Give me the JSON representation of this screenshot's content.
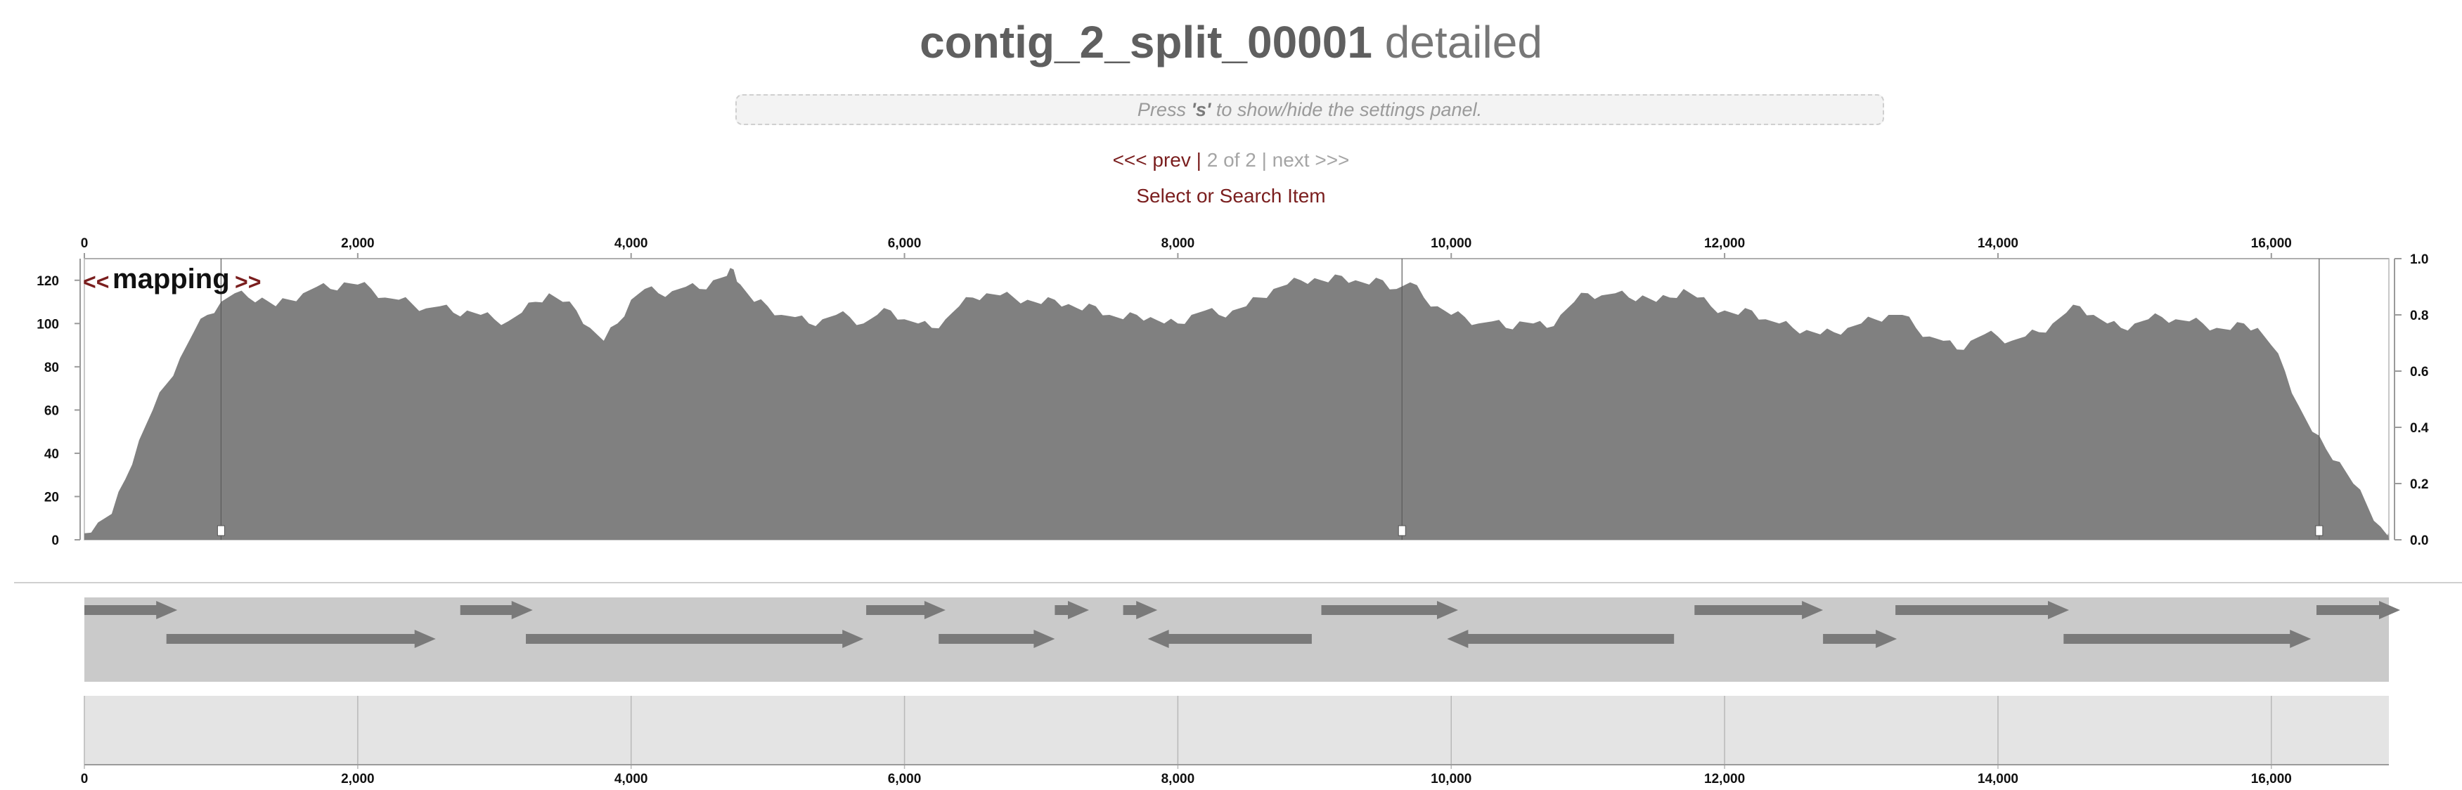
{
  "header": {
    "title_bold": "contig_2_split_00001",
    "title_light": "detailed"
  },
  "settings_hint": {
    "prefix": "Press ",
    "key": "'s'",
    "suffix": " to show/hide the settings panel."
  },
  "navigation": {
    "prev_label": "<<< prev",
    "separator": "|",
    "position_label": "2 of 2",
    "next_label": "next >>>"
  },
  "select_search_label": "Select or Search Item",
  "coverage_track": {
    "label": "mapping",
    "left_arrow": "<<",
    "right_arrow": ">>",
    "left_axis_ticks": [
      "0",
      "20",
      "40",
      "60",
      "80",
      "100",
      "120"
    ],
    "right_axis_ticks": [
      "0.0",
      "0.2",
      "0.4",
      "0.6",
      "0.8",
      "1.0"
    ],
    "variability_markers": [
      1000,
      9640,
      16350
    ],
    "coverage_max": 130,
    "coverage_profile": [
      [
        0,
        3
      ],
      [
        100,
        8
      ],
      [
        200,
        12
      ],
      [
        300,
        28
      ],
      [
        400,
        46
      ],
      [
        500,
        60
      ],
      [
        600,
        72
      ],
      [
        700,
        84
      ],
      [
        800,
        96
      ],
      [
        900,
        104
      ],
      [
        1000,
        110
      ],
      [
        1100,
        114
      ],
      [
        1200,
        112
      ],
      [
        1300,
        112
      ],
      [
        1400,
        108
      ],
      [
        1500,
        111
      ],
      [
        1600,
        114
      ],
      [
        1700,
        117
      ],
      [
        1800,
        116
      ],
      [
        1900,
        119
      ],
      [
        2000,
        118
      ],
      [
        2100,
        116
      ],
      [
        2200,
        112
      ],
      [
        2300,
        111
      ],
      [
        2400,
        109
      ],
      [
        2500,
        107
      ],
      [
        2600,
        108
      ],
      [
        2700,
        105
      ],
      [
        2800,
        106
      ],
      [
        2900,
        104
      ],
      [
        3000,
        102
      ],
      [
        3100,
        101
      ],
      [
        3200,
        105
      ],
      [
        3300,
        110
      ],
      [
        3400,
        114
      ],
      [
        3500,
        110
      ],
      [
        3600,
        106
      ],
      [
        3700,
        98
      ],
      [
        3800,
        92
      ],
      [
        3900,
        100
      ],
      [
        4000,
        111
      ],
      [
        4100,
        116
      ],
      [
        4200,
        114
      ],
      [
        4300,
        115
      ],
      [
        4400,
        117
      ],
      [
        4500,
        116
      ],
      [
        4600,
        120
      ],
      [
        4700,
        122
      ],
      [
        4750,
        125
      ],
      [
        4800,
        118
      ],
      [
        4900,
        110
      ],
      [
        5000,
        108
      ],
      [
        5100,
        104
      ],
      [
        5200,
        103
      ],
      [
        5300,
        100
      ],
      [
        5400,
        102
      ],
      [
        5500,
        104
      ],
      [
        5600,
        103
      ],
      [
        5700,
        100
      ],
      [
        5800,
        104
      ],
      [
        5900,
        106
      ],
      [
        6000,
        102
      ],
      [
        6100,
        100
      ],
      [
        6200,
        98
      ],
      [
        6300,
        102
      ],
      [
        6400,
        108
      ],
      [
        6500,
        112
      ],
      [
        6600,
        114
      ],
      [
        6700,
        113
      ],
      [
        6800,
        112
      ],
      [
        6900,
        111
      ],
      [
        7000,
        109
      ],
      [
        7100,
        111
      ],
      [
        7200,
        109
      ],
      [
        7300,
        106
      ],
      [
        7400,
        108
      ],
      [
        7500,
        104
      ],
      [
        7600,
        102
      ],
      [
        7700,
        104
      ],
      [
        7800,
        103
      ],
      [
        7900,
        100
      ],
      [
        8000,
        100
      ],
      [
        8100,
        104
      ],
      [
        8200,
        106
      ],
      [
        8300,
        104
      ],
      [
        8400,
        106
      ],
      [
        8500,
        108
      ],
      [
        8600,
        112
      ],
      [
        8700,
        116
      ],
      [
        8800,
        118
      ],
      [
        8900,
        120
      ],
      [
        9000,
        121
      ],
      [
        9100,
        119
      ],
      [
        9200,
        122
      ],
      [
        9300,
        120
      ],
      [
        9400,
        118
      ],
      [
        9500,
        120
      ],
      [
        9600,
        116
      ],
      [
        9700,
        119
      ],
      [
        9800,
        112
      ],
      [
        9900,
        108
      ],
      [
        10000,
        104
      ],
      [
        10100,
        103
      ],
      [
        10200,
        100
      ],
      [
        10300,
        101
      ],
      [
        10400,
        98
      ],
      [
        10500,
        101
      ],
      [
        10600,
        100
      ],
      [
        10700,
        98
      ],
      [
        10800,
        104
      ],
      [
        10900,
        110
      ],
      [
        11000,
        114
      ],
      [
        11100,
        113
      ],
      [
        11200,
        114
      ],
      [
        11300,
        112
      ],
      [
        11400,
        113
      ],
      [
        11500,
        110
      ],
      [
        11600,
        112
      ],
      [
        11700,
        116
      ],
      [
        11800,
        112
      ],
      [
        11900,
        108
      ],
      [
        12000,
        106
      ],
      [
        12100,
        104
      ],
      [
        12200,
        106
      ],
      [
        12300,
        102
      ],
      [
        12400,
        100
      ],
      [
        12500,
        98
      ],
      [
        12600,
        97
      ],
      [
        12700,
        95
      ],
      [
        12800,
        96
      ],
      [
        12900,
        98
      ],
      [
        13000,
        100
      ],
      [
        13100,
        102
      ],
      [
        13200,
        104
      ],
      [
        13300,
        104
      ],
      [
        13400,
        98
      ],
      [
        13500,
        94
      ],
      [
        13600,
        92
      ],
      [
        13700,
        88
      ],
      [
        13800,
        92
      ],
      [
        13900,
        95
      ],
      [
        14000,
        94
      ],
      [
        14100,
        92
      ],
      [
        14200,
        94
      ],
      [
        14300,
        96
      ],
      [
        14400,
        100
      ],
      [
        14500,
        105
      ],
      [
        14600,
        108
      ],
      [
        14700,
        104
      ],
      [
        14800,
        100
      ],
      [
        14900,
        98
      ],
      [
        15000,
        100
      ],
      [
        15100,
        102
      ],
      [
        15200,
        103
      ],
      [
        15300,
        102
      ],
      [
        15400,
        101
      ],
      [
        15500,
        100
      ],
      [
        15600,
        98
      ],
      [
        15700,
        97
      ],
      [
        15800,
        100
      ],
      [
        15900,
        98
      ],
      [
        16000,
        90
      ],
      [
        16100,
        78
      ],
      [
        16200,
        62
      ],
      [
        16300,
        50
      ],
      [
        16400,
        42
      ],
      [
        16500,
        36
      ],
      [
        16600,
        26
      ],
      [
        16700,
        16
      ],
      [
        16800,
        6
      ],
      [
        16850,
        2
      ],
      [
        16860,
        0
      ]
    ]
  },
  "genes_track": {
    "genes": [
      {
        "start": 0,
        "end": 680,
        "strand": "+",
        "row": 0
      },
      {
        "start": 2750,
        "end": 3280,
        "strand": "+",
        "row": 0
      },
      {
        "start": 5720,
        "end": 6300,
        "strand": "+",
        "row": 0
      },
      {
        "start": 7100,
        "end": 7350,
        "strand": "+",
        "row": 0
      },
      {
        "start": 7600,
        "end": 7850,
        "strand": "+",
        "row": 0
      },
      {
        "start": 9050,
        "end": 10050,
        "strand": "+",
        "row": 0
      },
      {
        "start": 11780,
        "end": 12720,
        "strand": "+",
        "row": 0
      },
      {
        "start": 13250,
        "end": 14520,
        "strand": "+",
        "row": 0
      },
      {
        "start": 16330,
        "end": 16960,
        "strand": "+",
        "row": 0
      },
      {
        "start": 600,
        "end": 2570,
        "strand": "+",
        "row": 1
      },
      {
        "start": 3230,
        "end": 5700,
        "strand": "+",
        "row": 1
      },
      {
        "start": 6250,
        "end": 7100,
        "strand": "+",
        "row": 1
      },
      {
        "start": 7780,
        "end": 8980,
        "strand": "-",
        "row": 1
      },
      {
        "start": 9970,
        "end": 11630,
        "strand": "-",
        "row": 1
      },
      {
        "start": 12720,
        "end": 13260,
        "strand": "+",
        "row": 1
      },
      {
        "start": 14480,
        "end": 16290,
        "strand": "+",
        "row": 1
      }
    ]
  },
  "overview_axis": {
    "ticks": [
      0,
      2000,
      4000,
      6000,
      8000,
      10000,
      12000,
      14000,
      16000
    ],
    "tick_labels": [
      "0",
      "2,000",
      "4,000",
      "6,000",
      "8,000",
      "10,000",
      "12,000",
      "14,000",
      "16,000"
    ]
  },
  "contig_length": 16860,
  "colors": {
    "coverage_fill": "#808080",
    "genes_bg": "#cacaca",
    "gene_arrow": "#7a7a7a",
    "overview_bg": "#e4e4e4",
    "link": "#7a1e1e"
  }
}
